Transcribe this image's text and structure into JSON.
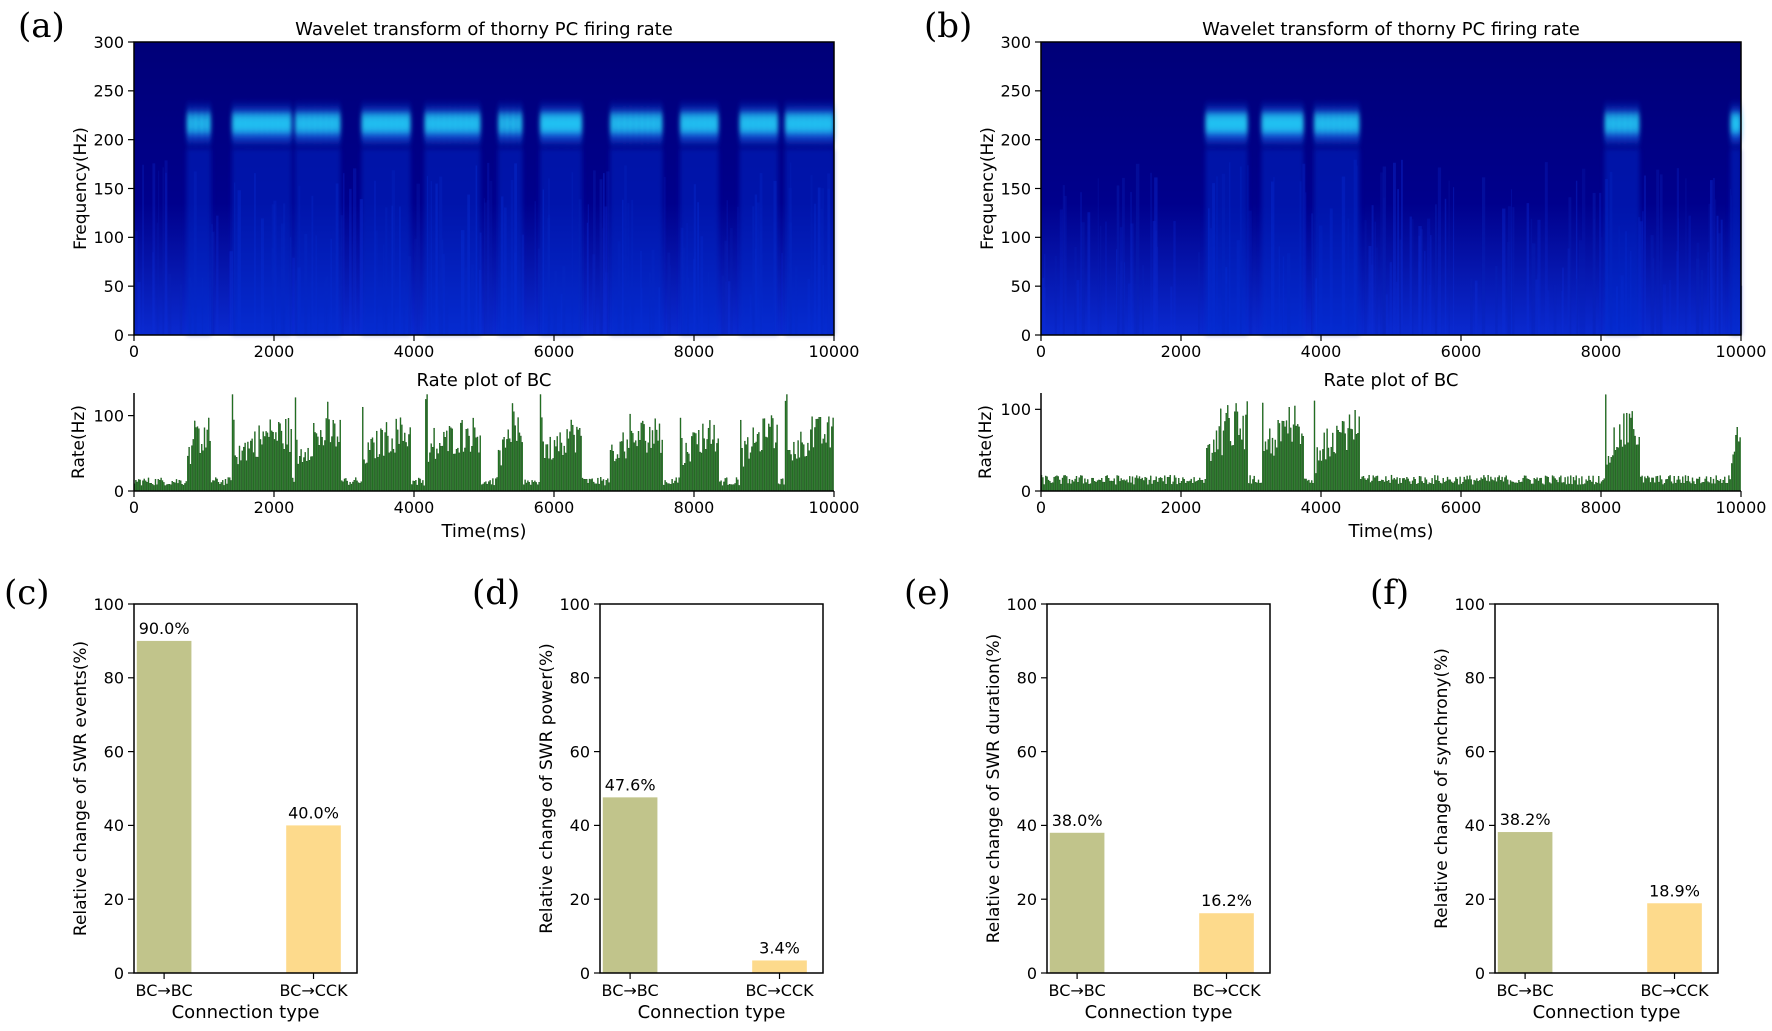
{
  "figure": {
    "panel_labels": [
      "(a)",
      "(b)",
      "(c)",
      "(d)",
      "(e)",
      "(f)"
    ],
    "colors": {
      "spec_dark": "#00007a",
      "spec_mid": "#0a2ad8",
      "spec_bright": "#19e4ff",
      "rate_fill": "#2e8b2e",
      "rate_stroke": "#0a3d0a",
      "bar_bc_bc": "#c1c48b",
      "bar_bc_cck": "#fdda8c"
    }
  },
  "chart_data": [
    {
      "id": "a-top",
      "type": "heatmap",
      "title": "Wavelet transform of thorny PC firing rate",
      "xlabel": "",
      "ylabel": "Frequency(Hz)",
      "xlim": [
        0,
        10000
      ],
      "ylim": [
        0,
        300
      ],
      "xticks": [
        0,
        2000,
        4000,
        6000,
        8000,
        10000
      ],
      "yticks": [
        0,
        50,
        100,
        150,
        200,
        250,
        300
      ],
      "band_center_hz": 215,
      "events_ms": [
        [
          750,
          1100
        ],
        [
          1400,
          2250
        ],
        [
          2300,
          2950
        ],
        [
          3250,
          3950
        ],
        [
          4150,
          4950
        ],
        [
          5200,
          5550
        ],
        [
          5800,
          6400
        ],
        [
          6800,
          7550
        ],
        [
          7800,
          8350
        ],
        [
          8650,
          9200
        ],
        [
          9300,
          10000
        ]
      ]
    },
    {
      "id": "a-bottom",
      "type": "bar",
      "title": "Rate plot of BC",
      "xlabel": "Time(ms)",
      "ylabel": "Rate(Hz)",
      "xlim": [
        0,
        10000
      ],
      "ylim": [
        0,
        130
      ],
      "xticks": [
        0,
        2000,
        4000,
        6000,
        8000,
        10000
      ],
      "yticks": [
        0,
        100
      ],
      "baseline_rate": 14,
      "events_ms": [
        [
          750,
          1100
        ],
        [
          1400,
          2250
        ],
        [
          2300,
          2950
        ],
        [
          3250,
          3950
        ],
        [
          4150,
          4950
        ],
        [
          5200,
          5550
        ],
        [
          5800,
          6400
        ],
        [
          6800,
          7550
        ],
        [
          7800,
          8350
        ],
        [
          8650,
          9200
        ],
        [
          9300,
          10000
        ]
      ],
      "event_peak_rate": 100
    },
    {
      "id": "b-top",
      "type": "heatmap",
      "title": "Wavelet transform of thorny PC firing rate",
      "xlabel": "",
      "ylabel": "Frequency(Hz)",
      "xlim": [
        0,
        10000
      ],
      "ylim": [
        0,
        300
      ],
      "xticks": [
        0,
        2000,
        4000,
        6000,
        8000,
        10000
      ],
      "yticks": [
        0,
        50,
        100,
        150,
        200,
        250,
        300
      ],
      "band_center_hz": 215,
      "events_ms": [
        [
          2350,
          2950
        ],
        [
          3150,
          3750
        ],
        [
          3900,
          4550
        ],
        [
          8050,
          8550
        ],
        [
          9850,
          10000
        ]
      ]
    },
    {
      "id": "b-bottom",
      "type": "bar",
      "title": "Rate plot of BC",
      "xlabel": "Time(ms)",
      "ylabel": "Rate(Hz)",
      "xlim": [
        0,
        10000
      ],
      "ylim": [
        0,
        120
      ],
      "xticks": [
        0,
        2000,
        4000,
        6000,
        8000,
        10000
      ],
      "yticks": [
        0,
        100
      ],
      "baseline_rate": 15,
      "events_ms": [
        [
          2350,
          2950
        ],
        [
          3150,
          3750
        ],
        [
          3900,
          4550
        ],
        [
          8050,
          8550
        ],
        [
          9850,
          10000
        ]
      ],
      "event_peak_rate": 100
    },
    {
      "id": "c",
      "type": "bar",
      "categories": [
        "BC→BC",
        "BC→CCK"
      ],
      "values": [
        90.0,
        40.0
      ],
      "value_labels": [
        "90.0%",
        "40.0%"
      ],
      "xlabel": "Connection type",
      "ylabel": "Relative change of SWR events(%)",
      "ylim": [
        0,
        100
      ],
      "yticks": [
        0,
        20,
        40,
        60,
        80,
        100
      ]
    },
    {
      "id": "d",
      "type": "bar",
      "categories": [
        "BC→BC",
        "BC→CCK"
      ],
      "values": [
        47.6,
        3.4
      ],
      "value_labels": [
        "47.6%",
        "3.4%"
      ],
      "xlabel": "Connection type",
      "ylabel": "Relative change of SWR power(%)",
      "ylim": [
        0,
        100
      ],
      "yticks": [
        0,
        20,
        40,
        60,
        80,
        100
      ]
    },
    {
      "id": "e",
      "type": "bar",
      "categories": [
        "BC→BC",
        "BC→CCK"
      ],
      "values": [
        38.0,
        16.2
      ],
      "value_labels": [
        "38.0%",
        "16.2%"
      ],
      "xlabel": "Connection type",
      "ylabel": "Relative change of SWR duration(%)",
      "ylim": [
        0,
        100
      ],
      "yticks": [
        0,
        20,
        40,
        60,
        80,
        100
      ]
    },
    {
      "id": "f",
      "type": "bar",
      "categories": [
        "BC→BC",
        "BC→CCK"
      ],
      "values": [
        38.2,
        18.9
      ],
      "value_labels": [
        "38.2%",
        "18.9%"
      ],
      "xlabel": "Connection type",
      "ylabel": "Relative change of synchrony(%)",
      "ylim": [
        0,
        100
      ],
      "yticks": [
        0,
        20,
        40,
        60,
        80,
        100
      ]
    }
  ]
}
